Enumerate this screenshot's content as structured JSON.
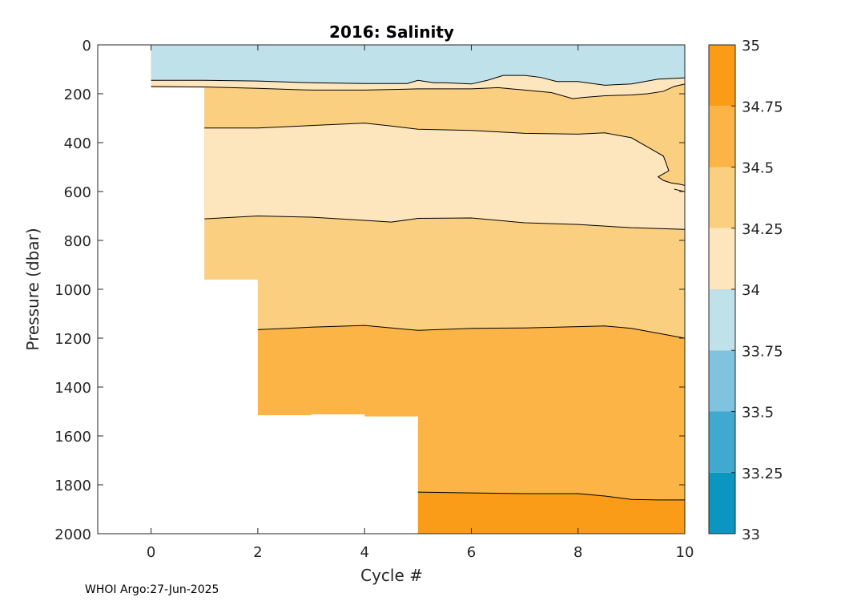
{
  "chart_data": {
    "type": "contourf",
    "title": "2016:  Salinity",
    "xlabel": "Cycle #",
    "ylabel": "Pressure (dbar)",
    "footer": "WHOI Argo:27-Jun-2025",
    "xlim": [
      -1,
      10
    ],
    "ylim": [
      0,
      2000
    ],
    "y_reversed": true,
    "xticks": [
      "0",
      "2",
      "4",
      "6",
      "8",
      "10"
    ],
    "yticks": [
      "0",
      "200",
      "400",
      "600",
      "800",
      "1000",
      "1200",
      "1400",
      "1600",
      "1800",
      "2000"
    ],
    "colorbar": {
      "ticks": [
        "33",
        "33.25",
        "33.5",
        "33.75",
        "34",
        "34.25",
        "34.5",
        "34.75",
        "35"
      ],
      "colors": [
        "#0a96c0",
        "#41a9cf",
        "#7fc3df",
        "#bfe1ea",
        "#fde6bd",
        "#fbcf80",
        "#fbb445",
        "#fb9c18"
      ]
    },
    "data_extent": {
      "cycles": [
        0,
        1,
        2,
        3,
        4,
        5,
        6,
        7,
        8,
        9,
        10
      ],
      "max_pressure": [
        175,
        960,
        1515,
        1512,
        1520,
        2000,
        2000,
        2000,
        2000,
        2000,
        2000
      ]
    },
    "contours": [
      {
        "level": 34,
        "x": [
          0,
          1,
          2,
          3,
          4,
          4.8,
          5,
          5.3,
          5.5,
          6,
          6.3,
          6.6,
          7,
          7.3,
          7.6,
          8,
          8.5,
          9,
          9.5,
          10
        ],
        "y": [
          145,
          145,
          148,
          155,
          158,
          158,
          145,
          155,
          155,
          160,
          145,
          125,
          125,
          133,
          150,
          150,
          165,
          160,
          140,
          135
        ]
      },
      {
        "level": 34.25,
        "x": [
          0,
          1,
          1.5,
          2,
          3,
          4,
          5,
          6,
          6.5,
          7,
          7.5,
          7.9,
          8.1,
          8.5,
          9,
          9.3,
          9.6,
          9.8,
          10
        ],
        "y": [
          170,
          172,
          175,
          178,
          185,
          185,
          180,
          180,
          175,
          185,
          195,
          220,
          215,
          208,
          205,
          200,
          190,
          170,
          160
        ]
      },
      {
        "level": 34.5,
        "x": [
          1,
          2,
          3,
          4,
          4.5,
          5,
          6,
          7,
          8,
          8.5,
          9,
          9.4,
          9.6,
          9.7,
          9.5,
          9.6,
          9.75,
          9.9,
          10
        ],
        "y": [
          340,
          340,
          330,
          320,
          332,
          345,
          350,
          362,
          365,
          360,
          380,
          430,
          455,
          515,
          540,
          555,
          565,
          570,
          575
        ]
      },
      {
        "level": 34.5,
        "x": [
          9.8,
          9.9,
          10
        ],
        "y": [
          590,
          596,
          600
        ]
      },
      {
        "level": 34.25,
        "x": [
          1,
          2,
          3,
          4,
          4.5,
          5,
          6,
          7,
          8,
          9,
          10
        ],
        "y": [
          712,
          700,
          705,
          718,
          725,
          710,
          708,
          728,
          735,
          748,
          755
        ]
      },
      {
        "level": 34.5,
        "x": [
          2,
          3,
          4,
          5,
          6,
          7,
          8,
          8.5,
          9,
          9.5,
          10
        ],
        "y": [
          1165,
          1155,
          1148,
          1168,
          1160,
          1158,
          1153,
          1150,
          1160,
          1180,
          1200
        ]
      },
      {
        "level": 34.75,
        "x": [
          5,
          6,
          7,
          8,
          8.5,
          9,
          9.5,
          10
        ],
        "y": [
          1830,
          1833,
          1836,
          1836,
          1846,
          1860,
          1862,
          1862
        ]
      }
    ]
  }
}
